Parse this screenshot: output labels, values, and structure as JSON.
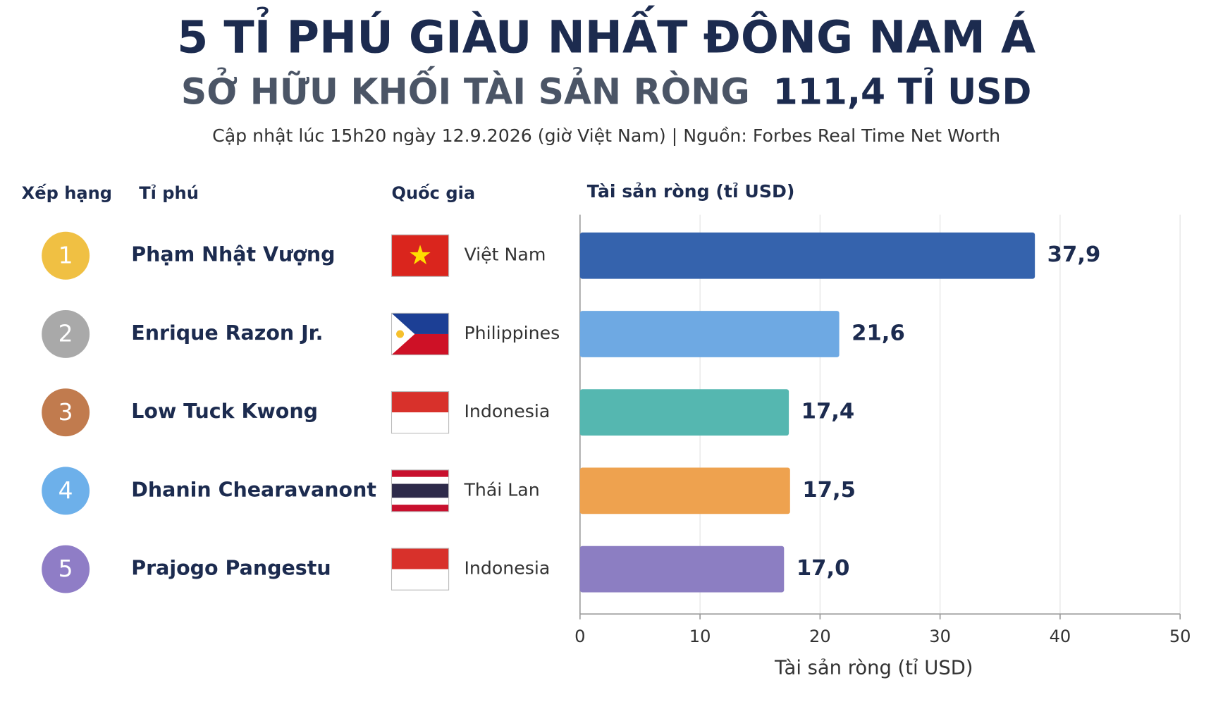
{
  "chart_data": {
    "type": "hbar",
    "title": "5 TỈ PHÚ GIÀU NHẤT ĐÔNG NAM Á",
    "subtitle": [
      "SỞ HỮU KHỐI TÀI SẢN RÒNG",
      "111,4 TỈ USD"
    ],
    "note": "Cập nhật lúc 15h20 ngày 12.9.2026 (giờ Việt Nam) | Nguồn: Forbes Real Time Net Worth",
    "column_headers": [
      "Xếp hạng",
      "Tỉ phú",
      "Quốc gia",
      "Tài sản ròng (tỉ USD)"
    ],
    "ranks": [
      1,
      2,
      3,
      4,
      5
    ],
    "rank_colors": [
      "#f0c043",
      "#a9a9a9",
      "#c17b4e",
      "#6db0ea",
      "#8f7dc6"
    ],
    "categories": [
      "Phạm Nhật Vượng",
      "Enrique Razon Jr.",
      "Low Tuck Kwong",
      "Dhanin Chearavanont",
      "Prajogo Pangestu"
    ],
    "countries": [
      "Việt Nam",
      "Philippines",
      "Indonesia",
      "Thái Lan",
      "Indonesia"
    ],
    "values": [
      37.9,
      21.6,
      17.4,
      17.5,
      17.0
    ],
    "value_labels": [
      "37,9",
      "21,6",
      "17,4",
      "17,5",
      "17,0"
    ],
    "colors": [
      "#3563ad",
      "#6ea9e3",
      "#55b7b0",
      "#eea24f",
      "#8c7ec2"
    ],
    "xlim": [
      0,
      50
    ],
    "xticks": [
      0,
      10,
      20,
      30,
      40,
      50
    ],
    "x_label": "Tài sản ròng (tỉ USD)",
    "grid": true
  }
}
